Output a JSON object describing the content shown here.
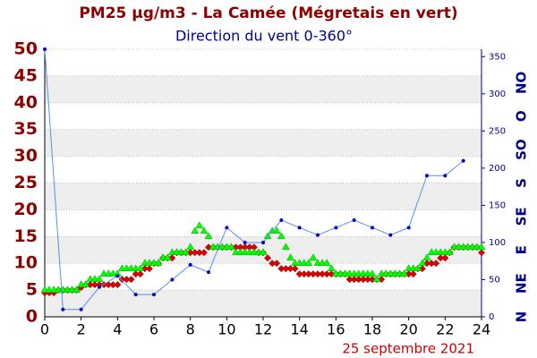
{
  "chart_data": {
    "type": "line",
    "title": "PM25 µg/m3 - La Camée (Mégretais en vert)",
    "subtitle": "Direction du vent 0-360°",
    "date_label": "25 septembre 2021",
    "xlim": [
      0,
      24
    ],
    "xticks": [
      0,
      2,
      4,
      6,
      8,
      10,
      12,
      14,
      16,
      18,
      20,
      22,
      24
    ],
    "ylim": [
      0,
      50
    ],
    "yticks": [
      0,
      5,
      10,
      15,
      20,
      25,
      30,
      35,
      40,
      45,
      50
    ],
    "y2lim": [
      0,
      360
    ],
    "y2ticks": [
      0,
      50,
      100,
      150,
      200,
      250,
      300,
      350
    ],
    "y2_compass": [
      {
        "value": 0,
        "label": "N"
      },
      {
        "value": 45,
        "label": "NE"
      },
      {
        "value": 90,
        "label": "E"
      },
      {
        "value": 135,
        "label": "SE"
      },
      {
        "value": 180,
        "label": "S"
      },
      {
        "value": 225,
        "label": "SO"
      },
      {
        "value": 270,
        "label": "O"
      },
      {
        "value": 315,
        "label": "NO"
      }
    ],
    "grid": true,
    "series": [
      {
        "color": "#e00000",
        "marker": "diamond",
        "x_step": 0.25,
        "values": [
          4.5,
          4.5,
          4.5,
          5,
          5,
          5,
          5,
          5,
          5.5,
          6,
          6,
          6,
          6,
          6,
          6,
          6,
          6,
          7,
          7,
          7,
          8,
          8,
          9,
          9,
          10,
          10,
          11,
          11,
          11,
          12,
          12,
          12,
          12,
          12,
          12,
          12,
          13,
          13,
          13,
          13,
          13,
          13,
          13,
          13,
          13,
          13,
          13,
          12,
          12,
          11,
          10,
          10,
          9,
          9,
          9,
          9,
          8,
          8,
          8,
          8,
          8,
          8,
          8,
          8,
          8,
          8,
          8,
          7,
          7,
          7,
          7,
          7,
          7,
          7,
          7,
          8,
          8,
          8,
          8,
          8,
          8,
          8,
          9,
          9,
          10,
          10,
          10,
          11,
          11,
          12,
          13,
          13,
          13,
          13,
          13,
          13,
          12
        ]
      },
      {
        "color": "#00ff00",
        "marker": "triangle",
        "x_step": 0.25,
        "values": [
          5,
          5,
          5,
          5,
          5,
          5,
          5,
          5,
          6,
          6,
          7,
          7,
          7,
          8,
          8,
          8,
          8,
          9,
          9,
          9,
          9,
          9,
          10,
          10,
          10,
          10,
          11,
          11,
          12,
          12,
          12,
          12,
          13,
          16,
          17,
          16,
          15,
          13,
          13,
          13,
          13,
          13,
          12,
          12,
          12,
          12,
          12,
          12,
          12,
          15,
          16,
          16,
          15,
          13,
          11,
          10,
          10,
          10,
          10,
          11,
          10,
          10,
          10,
          9,
          8,
          8,
          8,
          8,
          8,
          8,
          8,
          8,
          8,
          7,
          8,
          8,
          8,
          8,
          8,
          8,
          9,
          9,
          9,
          10,
          11,
          12,
          12,
          12,
          12,
          12,
          13,
          13,
          13,
          13,
          13,
          13,
          13
        ]
      },
      {
        "color": "#0000cc",
        "marker": "circle",
        "axis": "y2",
        "x_step": 1,
        "values": [
          360,
          10,
          10,
          40,
          55,
          30,
          30,
          50,
          70,
          60,
          120,
          100,
          100,
          130,
          120,
          110,
          120,
          130,
          120,
          110,
          120,
          190,
          190,
          210
        ]
      }
    ]
  }
}
